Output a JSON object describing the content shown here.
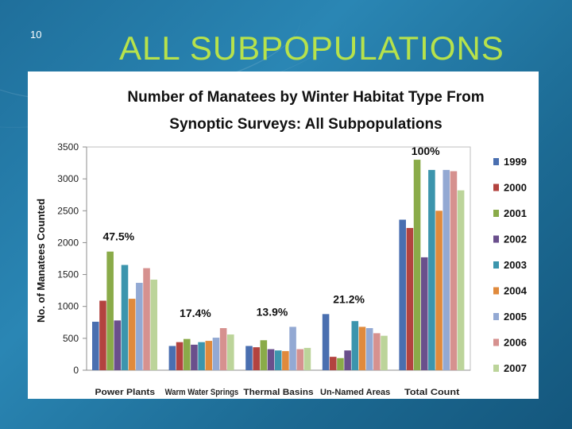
{
  "slide": {
    "number": "10",
    "title": "ALL SUBPOPULATIONS"
  },
  "chart_data": {
    "type": "bar",
    "title": "Number of Manatees by Winter Habitat Type From Synoptic Surveys:  All Subpopulations",
    "title_lines": [
      "Number of Manatees by Winter Habitat Type From",
      "Synoptic Surveys:  All Subpopulations"
    ],
    "xlabel": "",
    "ylabel": "No. of Manatees Counted",
    "ylim": [
      0,
      3500
    ],
    "yticks": [
      0,
      500,
      1000,
      1500,
      2000,
      2500,
      3000,
      3500
    ],
    "grid": false,
    "legend_position": "right",
    "categories": [
      "Power Plants",
      "Warm Water Springs",
      "Thermal Basins",
      "Un-Named Areas",
      "Total Count"
    ],
    "annotations": [
      "47.5%",
      "17.4%",
      "13.9%",
      "21.2%",
      "100%"
    ],
    "series": [
      {
        "name": "1999",
        "color": "#4a6fb0",
        "values": [
          760,
          380,
          380,
          880,
          2360
        ]
      },
      {
        "name": "2000",
        "color": "#b3433f",
        "values": [
          1090,
          440,
          360,
          210,
          2230
        ]
      },
      {
        "name": "2001",
        "color": "#8aab49",
        "values": [
          1860,
          490,
          470,
          190,
          3300
        ]
      },
      {
        "name": "2002",
        "color": "#6a4f8c",
        "values": [
          780,
          400,
          330,
          310,
          1770
        ]
      },
      {
        "name": "2003",
        "color": "#3c95ad",
        "values": [
          1650,
          440,
          310,
          770,
          3140
        ]
      },
      {
        "name": "2004",
        "color": "#e08a3c",
        "values": [
          1120,
          460,
          300,
          680,
          2500
        ]
      },
      {
        "name": "2005",
        "color": "#93a9d3",
        "values": [
          1370,
          510,
          680,
          660,
          3140
        ]
      },
      {
        "name": "2006",
        "color": "#d6918f",
        "values": [
          1600,
          660,
          330,
          580,
          3120
        ]
      },
      {
        "name": "2007",
        "color": "#bcd49a",
        "values": [
          1420,
          560,
          350,
          540,
          2820
        ]
      }
    ]
  }
}
